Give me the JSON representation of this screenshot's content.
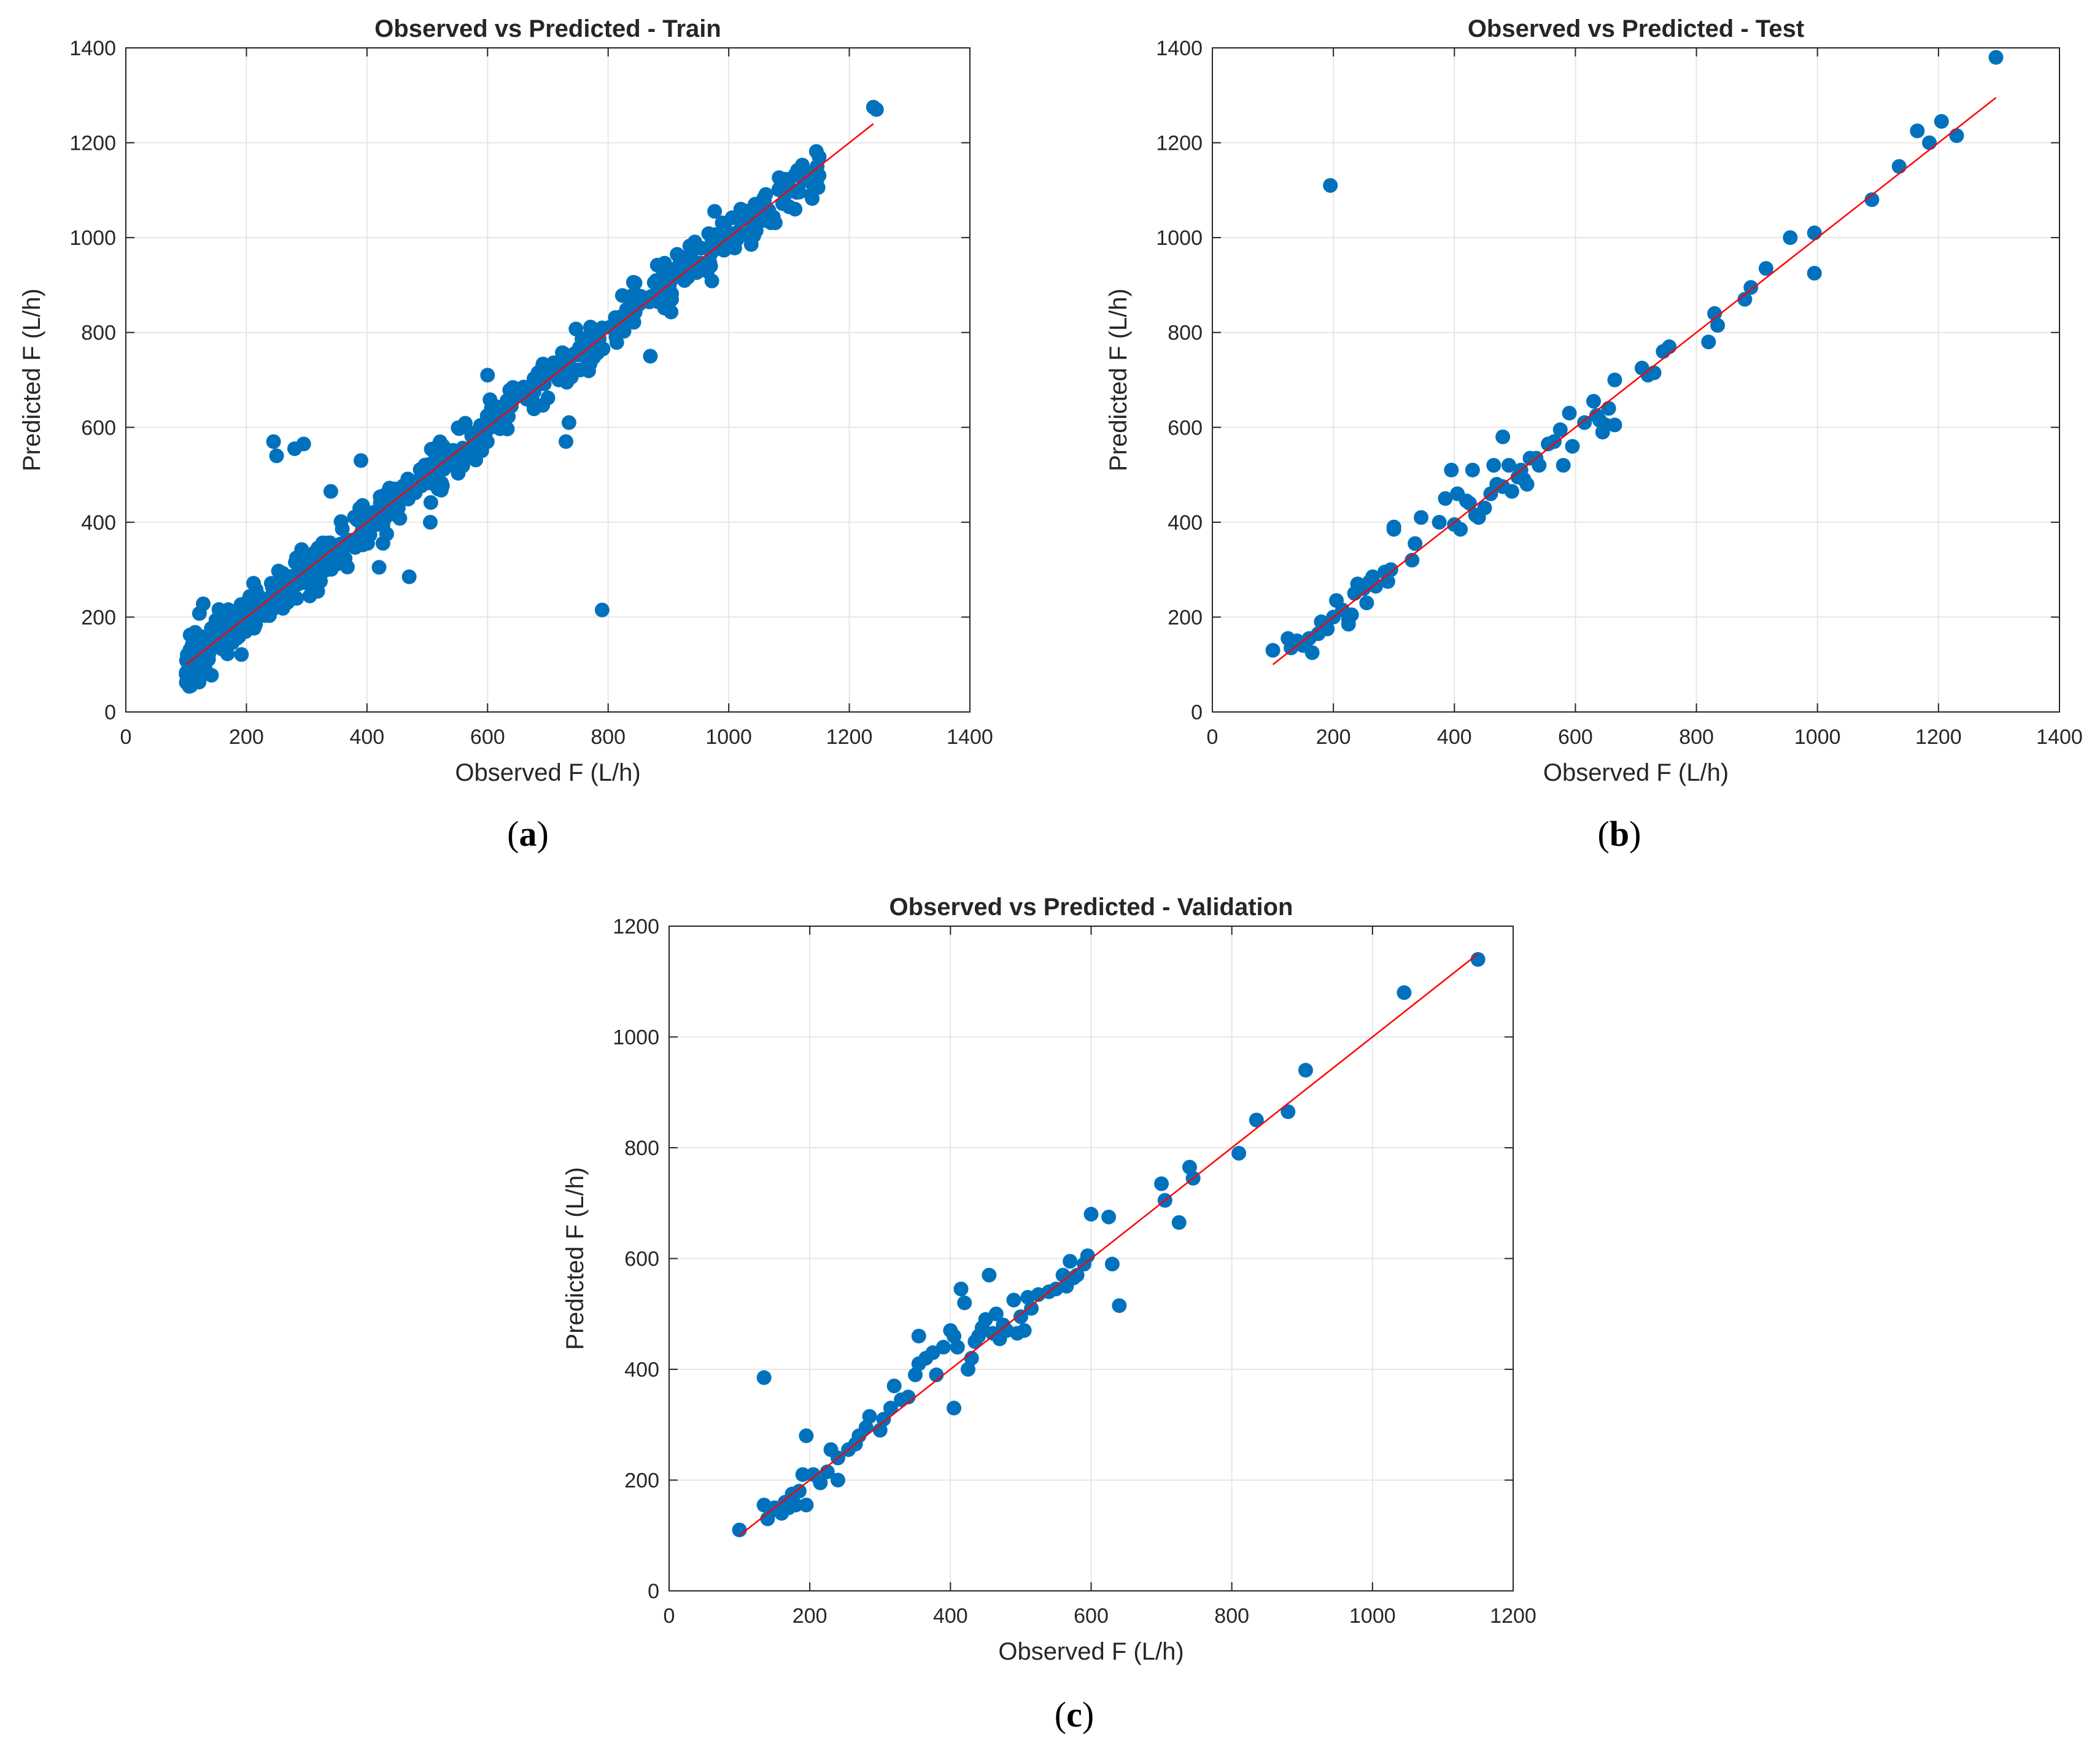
{
  "chart_data": [
    {
      "type": "scatter",
      "title": "Observed vs Predicted - Train",
      "xlabel": "Observed F (L/h)",
      "ylabel": "Predicted F (L/h)",
      "xlim": [
        0,
        1400
      ],
      "ylim": [
        0,
        1400
      ],
      "xticks": [
        0,
        200,
        400,
        600,
        800,
        1000,
        1200,
        1400
      ],
      "yticks": [
        0,
        200,
        400,
        600,
        800,
        1000,
        1200,
        1400
      ],
      "grid": true,
      "fit_line": {
        "from": [
          100,
          100
        ],
        "to": [
          1240,
          1240
        ],
        "color": "#ff0000"
      },
      "marker_color": "#0072bd",
      "caption_label": "a",
      "outliers": [
        [
          245,
          570
        ],
        [
          250,
          540
        ],
        [
          280,
          555
        ],
        [
          295,
          565
        ],
        [
          790,
          215
        ],
        [
          470,
          285
        ],
        [
          420,
          305
        ],
        [
          870,
          750
        ],
        [
          730,
          570
        ],
        [
          600,
          710
        ],
        [
          390,
          530
        ],
        [
          340,
          465
        ],
        [
          1240,
          1275
        ],
        [
          1245,
          1270
        ],
        [
          1150,
          1170
        ],
        [
          1020,
          1060
        ],
        [
          1110,
          1060
        ],
        [
          970,
          940
        ],
        [
          505,
          400
        ],
        [
          735,
          610
        ]
      ],
      "dense_band": {
        "count": 620,
        "x_range": [
          100,
          1150
        ],
        "spread": 28,
        "seed": 11
      }
    },
    {
      "type": "scatter",
      "title": "Observed vs Predicted - Test",
      "xlabel": "Observed F (L/h)",
      "ylabel": "Predicted F (L/h)",
      "xlim": [
        0,
        1400
      ],
      "ylim": [
        0,
        1400
      ],
      "xticks": [
        0,
        200,
        400,
        600,
        800,
        1000,
        1200,
        1400
      ],
      "yticks": [
        0,
        200,
        400,
        600,
        800,
        1000,
        1200,
        1400
      ],
      "grid": true,
      "fit_line": {
        "from": [
          100,
          100
        ],
        "to": [
          1295,
          1295
        ],
        "color": "#ff0000"
      },
      "marker_color": "#0072bd",
      "caption_label": "b",
      "points": [
        [
          100,
          130
        ],
        [
          125,
          155
        ],
        [
          130,
          135
        ],
        [
          140,
          150
        ],
        [
          150,
          140
        ],
        [
          160,
          155
        ],
        [
          165,
          125
        ],
        [
          175,
          165
        ],
        [
          180,
          190
        ],
        [
          190,
          175
        ],
        [
          195,
          1110
        ],
        [
          200,
          200
        ],
        [
          205,
          235
        ],
        [
          215,
          215
        ],
        [
          225,
          195
        ],
        [
          225,
          185
        ],
        [
          230,
          205
        ],
        [
          235,
          250
        ],
        [
          240,
          270
        ],
        [
          250,
          260
        ],
        [
          255,
          230
        ],
        [
          260,
          275
        ],
        [
          265,
          285
        ],
        [
          270,
          265
        ],
        [
          285,
          295
        ],
        [
          290,
          275
        ],
        [
          295,
          300
        ],
        [
          300,
          390
        ],
        [
          300,
          385
        ],
        [
          330,
          320
        ],
        [
          335,
          355
        ],
        [
          345,
          410
        ],
        [
          375,
          400
        ],
        [
          385,
          450
        ],
        [
          395,
          510
        ],
        [
          400,
          395
        ],
        [
          405,
          460
        ],
        [
          410,
          385
        ],
        [
          420,
          445
        ],
        [
          425,
          440
        ],
        [
          430,
          510
        ],
        [
          435,
          415
        ],
        [
          440,
          410
        ],
        [
          450,
          430
        ],
        [
          460,
          460
        ],
        [
          465,
          520
        ],
        [
          470,
          480
        ],
        [
          480,
          475
        ],
        [
          480,
          580
        ],
        [
          490,
          520
        ],
        [
          495,
          465
        ],
        [
          505,
          495
        ],
        [
          510,
          510
        ],
        [
          515,
          490
        ],
        [
          520,
          480
        ],
        [
          525,
          535
        ],
        [
          535,
          535
        ],
        [
          540,
          520
        ],
        [
          555,
          565
        ],
        [
          565,
          570
        ],
        [
          575,
          595
        ],
        [
          580,
          520
        ],
        [
          590,
          630
        ],
        [
          595,
          560
        ],
        [
          615,
          610
        ],
        [
          630,
          655
        ],
        [
          635,
          625
        ],
        [
          640,
          615
        ],
        [
          645,
          590
        ],
        [
          650,
          605
        ],
        [
          655,
          640
        ],
        [
          665,
          700
        ],
        [
          665,
          605
        ],
        [
          710,
          725
        ],
        [
          720,
          710
        ],
        [
          730,
          715
        ],
        [
          745,
          760
        ],
        [
          755,
          770
        ],
        [
          820,
          780
        ],
        [
          830,
          840
        ],
        [
          835,
          815
        ],
        [
          880,
          870
        ],
        [
          890,
          895
        ],
        [
          915,
          935
        ],
        [
          955,
          1000
        ],
        [
          995,
          1010
        ],
        [
          995,
          925
        ],
        [
          1090,
          1080
        ],
        [
          1135,
          1150
        ],
        [
          1165,
          1225
        ],
        [
          1185,
          1200
        ],
        [
          1205,
          1245
        ],
        [
          1230,
          1215
        ],
        [
          1295,
          1380
        ]
      ]
    },
    {
      "type": "scatter",
      "title": "Observed vs Predicted - Validation",
      "xlabel": "Observed F (L/h)",
      "ylabel": "Predicted F (L/h)",
      "xlim": [
        0,
        1200
      ],
      "ylim": [
        0,
        1200
      ],
      "xticks": [
        0,
        200,
        400,
        600,
        800,
        1000,
        1200
      ],
      "yticks": [
        0,
        200,
        400,
        600,
        800,
        1000,
        1200
      ],
      "grid": true,
      "fit_line": {
        "from": [
          100,
          100
        ],
        "to": [
          1150,
          1150
        ],
        "color": "#ff0000"
      },
      "marker_color": "#0072bd",
      "caption_label": "c",
      "points": [
        [
          100,
          110
        ],
        [
          135,
          385
        ],
        [
          135,
          155
        ],
        [
          140,
          130
        ],
        [
          145,
          145
        ],
        [
          150,
          150
        ],
        [
          160,
          140
        ],
        [
          165,
          160
        ],
        [
          170,
          150
        ],
        [
          175,
          175
        ],
        [
          180,
          155
        ],
        [
          185,
          180
        ],
        [
          190,
          210
        ],
        [
          195,
          155
        ],
        [
          195,
          280
        ],
        [
          205,
          210
        ],
        [
          215,
          195
        ],
        [
          225,
          215
        ],
        [
          230,
          255
        ],
        [
          240,
          240
        ],
        [
          240,
          200
        ],
        [
          255,
          255
        ],
        [
          265,
          265
        ],
        [
          270,
          280
        ],
        [
          280,
          295
        ],
        [
          285,
          315
        ],
        [
          300,
          290
        ],
        [
          305,
          310
        ],
        [
          315,
          330
        ],
        [
          320,
          370
        ],
        [
          330,
          345
        ],
        [
          340,
          350
        ],
        [
          350,
          390
        ],
        [
          355,
          410
        ],
        [
          355,
          460
        ],
        [
          365,
          420
        ],
        [
          375,
          430
        ],
        [
          380,
          390
        ],
        [
          390,
          440
        ],
        [
          400,
          470
        ],
        [
          405,
          330
        ],
        [
          405,
          460
        ],
        [
          410,
          440
        ],
        [
          415,
          545
        ],
        [
          420,
          520
        ],
        [
          425,
          400
        ],
        [
          430,
          420
        ],
        [
          435,
          450
        ],
        [
          440,
          460
        ],
        [
          445,
          475
        ],
        [
          450,
          490
        ],
        [
          455,
          570
        ],
        [
          460,
          465
        ],
        [
          465,
          500
        ],
        [
          470,
          455
        ],
        [
          475,
          480
        ],
        [
          480,
          470
        ],
        [
          490,
          525
        ],
        [
          495,
          465
        ],
        [
          500,
          495
        ],
        [
          505,
          470
        ],
        [
          510,
          530
        ],
        [
          515,
          510
        ],
        [
          525,
          535
        ],
        [
          540,
          540
        ],
        [
          550,
          545
        ],
        [
          560,
          570
        ],
        [
          565,
          550
        ],
        [
          570,
          595
        ],
        [
          575,
          565
        ],
        [
          580,
          570
        ],
        [
          590,
          590
        ],
        [
          595,
          605
        ],
        [
          600,
          680
        ],
        [
          625,
          675
        ],
        [
          630,
          590
        ],
        [
          640,
          515
        ],
        [
          700,
          735
        ],
        [
          705,
          705
        ],
        [
          725,
          665
        ],
        [
          740,
          765
        ],
        [
          745,
          745
        ],
        [
          810,
          790
        ],
        [
          835,
          850
        ],
        [
          880,
          865
        ],
        [
          905,
          940
        ],
        [
          1045,
          1080
        ],
        [
          1150,
          1140
        ]
      ]
    }
  ]
}
